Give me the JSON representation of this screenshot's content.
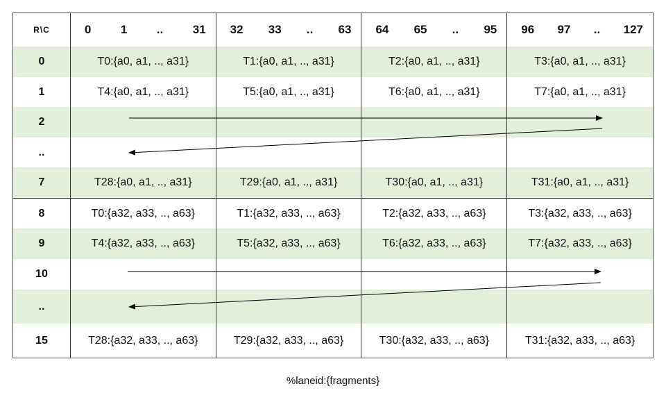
{
  "header": {
    "corner": "R\\C",
    "columns": [
      [
        "0",
        "1",
        "..",
        "31"
      ],
      [
        "32",
        "33",
        "..",
        "63"
      ],
      [
        "64",
        "65",
        "..",
        "95"
      ],
      [
        "96",
        "97",
        "..",
        "127"
      ]
    ]
  },
  "rows": [
    {
      "label": "0",
      "cells": [
        "T0:{a0, a1, .., a31}",
        "T1:{a0, a1, .., a31}",
        "T2:{a0, a1, .., a31}",
        "T3:{a0, a1, .., a31}"
      ]
    },
    {
      "label": "1",
      "cells": [
        "T4:{a0, a1, .., a31}",
        "T5:{a0, a1, .., a31}",
        "T6:{a0, a1, .., a31}",
        "T7:{a0, a1, .., a31}"
      ]
    },
    {
      "label": "2",
      "cells": [
        "",
        "",
        "",
        ""
      ]
    },
    {
      "label": "..",
      "cells": [
        "",
        "",
        "",
        ""
      ]
    },
    {
      "label": "7",
      "cells": [
        "T28:{a0, a1, .., a31}",
        "T29:{a0, a1, .., a31}",
        "T30:{a0, a1, .., a31}",
        "T31:{a0, a1, .., a31}"
      ]
    },
    {
      "label": "8",
      "cells": [
        "T0:{a32, a33, .., a63}",
        "T1:{a32, a33, .., a63}",
        "T2:{a32, a33, .., a63}",
        "T3:{a32, a33, .., a63}"
      ]
    },
    {
      "label": "9",
      "cells": [
        "T4:{a32, a33, .., a63}",
        "T5:{a32, a33, .., a63}",
        "T6:{a32, a33, .., a63}",
        "T7:{a32, a33, .., a63}"
      ]
    },
    {
      "label": "10",
      "cells": [
        "",
        "",
        "",
        ""
      ]
    },
    {
      "label": "..",
      "cells": [
        "",
        "",
        "",
        ""
      ]
    },
    {
      "label": "15",
      "cells": [
        "T28:{a32, a33, .., a63}",
        "T29:{a32, a33, .., a63}",
        "T30:{a32, a33, .., a63}",
        "T31:{a32, a33, .., a63}"
      ]
    }
  ],
  "green_rows": [
    0,
    2,
    4,
    6,
    8
  ],
  "colors": {
    "green": "#e2efda"
  },
  "caption": "%laneid:{fragments}"
}
